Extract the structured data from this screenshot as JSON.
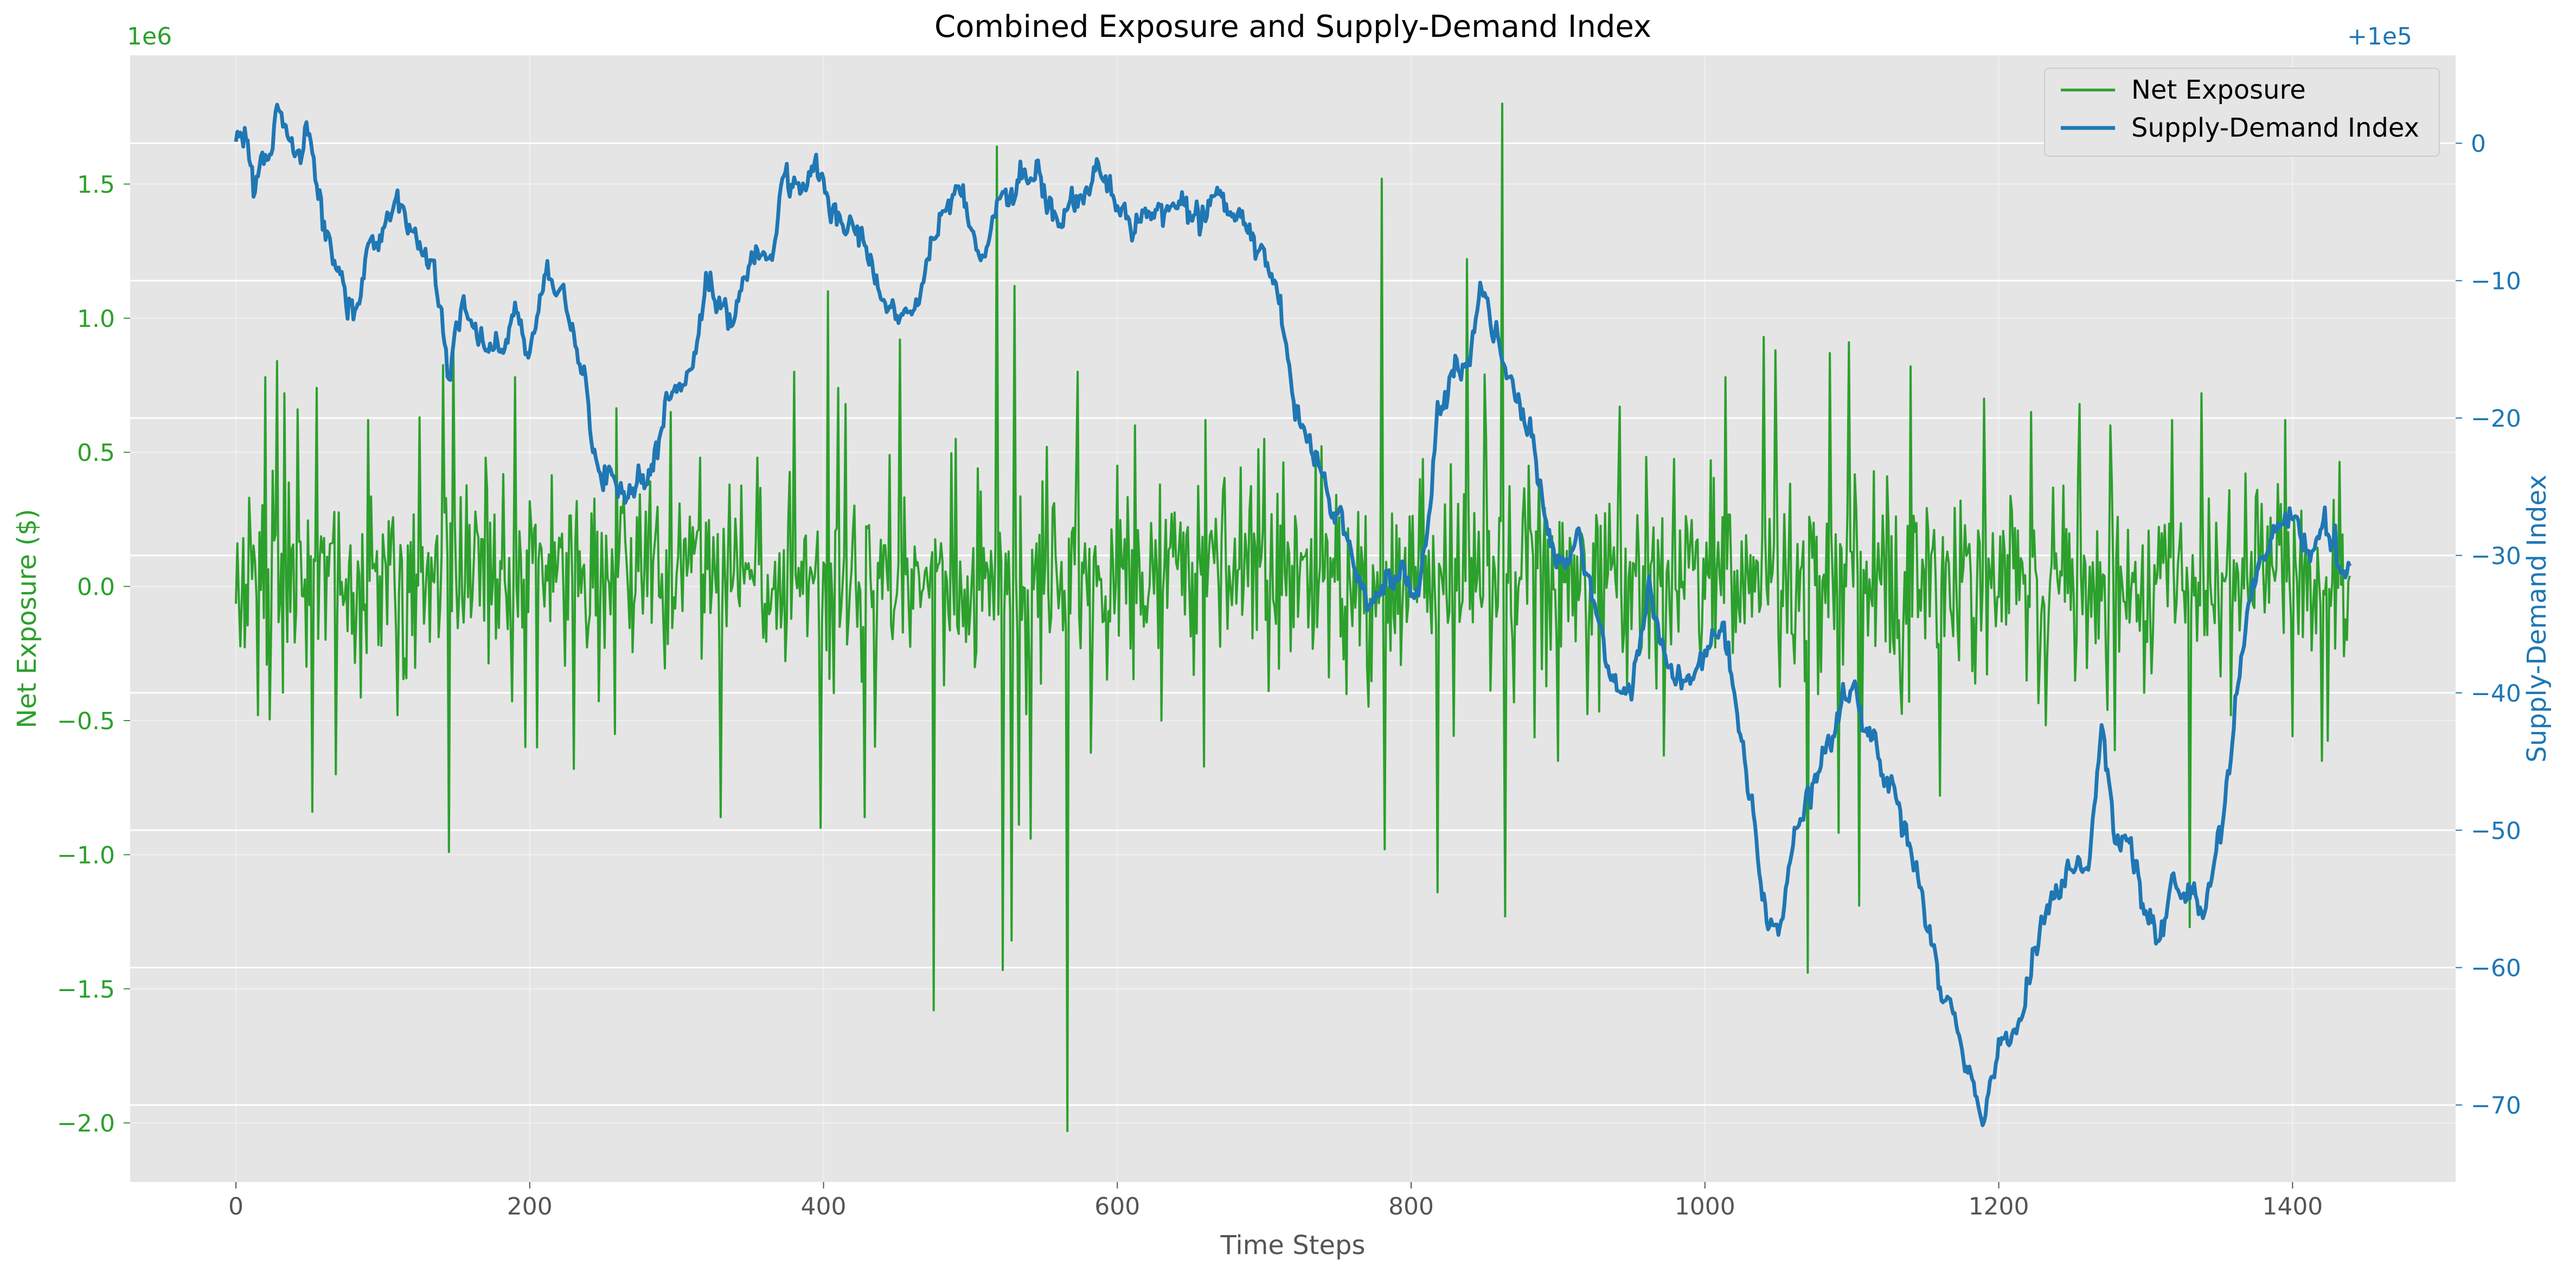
{
  "chart_data": {
    "type": "line",
    "title": "Combined Exposure and Supply-Demand Index",
    "xlabel": "Time Steps",
    "xlim": [
      -72,
      1511
    ],
    "x_ticks": [
      0,
      200,
      400,
      600,
      800,
      1000,
      1200,
      1400
    ],
    "x_tick_labels": [
      "0",
      "200",
      "400",
      "600",
      "800",
      "1000",
      "1200",
      "1400"
    ],
    "grid": true,
    "legend_position": "top-right",
    "left_axis": {
      "label": "Net Exposure ($)",
      "offset_text": "1e6",
      "color": "#2ca02c",
      "ylim": [
        -2.22,
        1.98
      ],
      "ticks": [
        -2.0,
        -1.5,
        -1.0,
        -0.5,
        0.0,
        0.5,
        1.0,
        1.5
      ],
      "tick_labels": [
        "−2.0",
        "−1.5",
        "−1.0",
        "−0.5",
        "0.0",
        "0.5",
        "1.0",
        "1.5"
      ]
    },
    "right_axis": {
      "label": "Supply-Demand Index",
      "offset_text": "+1e5",
      "color": "#1f77b4",
      "ylim": [
        -75.6,
        6.4
      ],
      "ticks": [
        -70,
        -60,
        -50,
        -40,
        -30,
        -20,
        -10,
        0
      ],
      "tick_labels": [
        "−70",
        "−60",
        "−50",
        "−40",
        "−30",
        "−20",
        "−10",
        "0"
      ]
    },
    "series": [
      {
        "name": "Net Exposure",
        "axis": "left",
        "color": "#2ca02c",
        "n_points": 1440,
        "baseline": 0.02,
        "spikes": [
          [
            5,
            0.18
          ],
          [
            15,
            -0.48
          ],
          [
            20,
            0.78
          ],
          [
            28,
            0.84
          ],
          [
            33,
            0.72
          ],
          [
            42,
            0.66
          ],
          [
            52,
            -0.84
          ],
          [
            55,
            0.74
          ],
          [
            68,
            -0.7
          ],
          [
            90,
            0.62
          ],
          [
            110,
            -0.48
          ],
          [
            125,
            0.63
          ],
          [
            145,
            -0.99
          ],
          [
            148,
            0.92
          ],
          [
            170,
            0.48
          ],
          [
            190,
            0.78
          ],
          [
            205,
            -0.6
          ],
          [
            230,
            -0.68
          ],
          [
            258,
            -0.55
          ],
          [
            296,
            0.65
          ],
          [
            316,
            0.48
          ],
          [
            330,
            -0.86
          ],
          [
            355,
            0.48
          ],
          [
            380,
            0.8
          ],
          [
            398,
            -0.9
          ],
          [
            403,
            1.1
          ],
          [
            410,
            0.74
          ],
          [
            415,
            0.68
          ],
          [
            428,
            -0.86
          ],
          [
            445,
            0.49
          ],
          [
            452,
            0.92
          ],
          [
            475,
            -1.58
          ],
          [
            490,
            0.55
          ],
          [
            505,
            0.44
          ],
          [
            518,
            1.64
          ],
          [
            522,
            -1.43
          ],
          [
            528,
            -1.32
          ],
          [
            530,
            1.12
          ],
          [
            541,
            -0.94
          ],
          [
            552,
            0.52
          ],
          [
            566,
            -2.03
          ],
          [
            573,
            0.8
          ],
          [
            582,
            -0.62
          ],
          [
            600,
            0.45
          ],
          [
            612,
            0.6
          ],
          [
            630,
            -0.5
          ],
          [
            660,
            0.62
          ],
          [
            700,
            0.55
          ],
          [
            735,
            0.5
          ],
          [
            780,
            1.52
          ],
          [
            782,
            -0.98
          ],
          [
            806,
            0.4
          ],
          [
            818,
            -1.14
          ],
          [
            838,
            1.22
          ],
          [
            850,
            0.79
          ],
          [
            862,
            1.8
          ],
          [
            864,
            -1.23
          ],
          [
            880,
            0.45
          ],
          [
            900,
            -0.65
          ],
          [
            942,
            0.67
          ],
          [
            1004,
            0.47
          ],
          [
            1014,
            0.78
          ],
          [
            1040,
            0.93
          ],
          [
            1048,
            0.88
          ],
          [
            1070,
            -1.44
          ],
          [
            1085,
            0.87
          ],
          [
            1098,
            0.91
          ],
          [
            1105,
            -1.19
          ],
          [
            1140,
            0.82
          ],
          [
            1160,
            -0.78
          ],
          [
            1190,
            0.7
          ],
          [
            1222,
            0.65
          ],
          [
            1255,
            0.68
          ],
          [
            1276,
            0.6
          ],
          [
            1318,
            0.62
          ],
          [
            1330,
            -1.27
          ],
          [
            1338,
            0.72
          ],
          [
            1358,
            -0.48
          ],
          [
            1395,
            0.62
          ],
          [
            1420,
            -0.65
          ],
          [
            1435,
            -0.26
          ]
        ]
      },
      {
        "name": "Supply-Demand Index",
        "axis": "right",
        "color": "#1f77b4",
        "n_points": 1440,
        "knots": [
          [
            0,
            0.0
          ],
          [
            6,
            1.0
          ],
          [
            12,
            -4.0
          ],
          [
            25,
            -1.5
          ],
          [
            28,
            2.5
          ],
          [
            40,
            -1.0
          ],
          [
            48,
            0.5
          ],
          [
            55,
            -3.0
          ],
          [
            60,
            -6.0
          ],
          [
            70,
            -9.0
          ],
          [
            80,
            -12.5
          ],
          [
            90,
            -8.0
          ],
          [
            100,
            -6.0
          ],
          [
            112,
            -4.5
          ],
          [
            125,
            -7.0
          ],
          [
            135,
            -9.0
          ],
          [
            145,
            -16.0
          ],
          [
            155,
            -11.5
          ],
          [
            165,
            -13.5
          ],
          [
            175,
            -15.5
          ],
          [
            190,
            -12.5
          ],
          [
            200,
            -15.5
          ],
          [
            210,
            -10.0
          ],
          [
            222,
            -10.8
          ],
          [
            235,
            -16.0
          ],
          [
            245,
            -23.0
          ],
          [
            255,
            -24.5
          ],
          [
            265,
            -26.0
          ],
          [
            280,
            -24.5
          ],
          [
            295,
            -19.0
          ],
          [
            310,
            -16.5
          ],
          [
            320,
            -10.5
          ],
          [
            335,
            -13.0
          ],
          [
            350,
            -9.0
          ],
          [
            365,
            -8.0
          ],
          [
            372,
            -1.5
          ],
          [
            385,
            -3.0
          ],
          [
            395,
            -2.5
          ],
          [
            410,
            -5.5
          ],
          [
            425,
            -7.0
          ],
          [
            440,
            -11.5
          ],
          [
            455,
            -13.5
          ],
          [
            470,
            -9.0
          ],
          [
            480,
            -5.5
          ],
          [
            490,
            -3.0
          ],
          [
            500,
            -5.5
          ],
          [
            510,
            -8.5
          ],
          [
            520,
            -3.5
          ],
          [
            530,
            -4.0
          ],
          [
            545,
            -2.0
          ],
          [
            560,
            -5.0
          ],
          [
            578,
            -3.5
          ],
          [
            590,
            -2.0
          ],
          [
            600,
            -4.0
          ],
          [
            610,
            -6.5
          ],
          [
            625,
            -5.0
          ],
          [
            640,
            -4.0
          ],
          [
            655,
            -6.5
          ],
          [
            665,
            -4.0
          ],
          [
            680,
            -5.0
          ],
          [
            695,
            -7.5
          ],
          [
            710,
            -11.0
          ],
          [
            720,
            -18.5
          ],
          [
            735,
            -23.5
          ],
          [
            745,
            -26.5
          ],
          [
            758,
            -29.0
          ],
          [
            770,
            -33.5
          ],
          [
            790,
            -31.5
          ],
          [
            805,
            -32.5
          ],
          [
            818,
            -20.5
          ],
          [
            830,
            -16.5
          ],
          [
            840,
            -15.5
          ],
          [
            848,
            -10.5
          ],
          [
            858,
            -13.5
          ],
          [
            870,
            -18.5
          ],
          [
            882,
            -21.5
          ],
          [
            895,
            -29.5
          ],
          [
            905,
            -31.5
          ],
          [
            915,
            -28.5
          ],
          [
            925,
            -33.5
          ],
          [
            935,
            -38.0
          ],
          [
            950,
            -40.5
          ],
          [
            962,
            -32.5
          ],
          [
            972,
            -37.0
          ],
          [
            985,
            -40.5
          ],
          [
            1000,
            -37.5
          ],
          [
            1012,
            -35.0
          ],
          [
            1022,
            -42.0
          ],
          [
            1032,
            -48.0
          ],
          [
            1042,
            -56.5
          ],
          [
            1050,
            -58.5
          ],
          [
            1060,
            -51.0
          ],
          [
            1070,
            -48.5
          ],
          [
            1080,
            -44.0
          ],
          [
            1092,
            -41.5
          ],
          [
            1100,
            -40.0
          ],
          [
            1110,
            -42.5
          ],
          [
            1120,
            -45.5
          ],
          [
            1130,
            -47.5
          ],
          [
            1140,
            -51.5
          ],
          [
            1150,
            -56.0
          ],
          [
            1160,
            -61.5
          ],
          [
            1172,
            -64.5
          ],
          [
            1180,
            -68.5
          ],
          [
            1190,
            -71.5
          ],
          [
            1197,
            -67.0
          ],
          [
            1210,
            -65.5
          ],
          [
            1220,
            -62.0
          ],
          [
            1230,
            -56.0
          ],
          [
            1240,
            -54.5
          ],
          [
            1250,
            -53.0
          ],
          [
            1260,
            -52.0
          ],
          [
            1270,
            -43.5
          ],
          [
            1280,
            -50.5
          ],
          [
            1290,
            -51.5
          ],
          [
            1300,
            -56.0
          ],
          [
            1310,
            -57.5
          ],
          [
            1320,
            -53.0
          ],
          [
            1330,
            -55.5
          ],
          [
            1340,
            -55.0
          ],
          [
            1352,
            -50.0
          ],
          [
            1362,
            -40.5
          ],
          [
            1372,
            -32.0
          ],
          [
            1382,
            -30.0
          ],
          [
            1392,
            -27.5
          ],
          [
            1402,
            -26.5
          ],
          [
            1412,
            -30.5
          ],
          [
            1422,
            -27.5
          ],
          [
            1430,
            -30.5
          ],
          [
            1440,
            -31.0
          ]
        ]
      }
    ]
  }
}
